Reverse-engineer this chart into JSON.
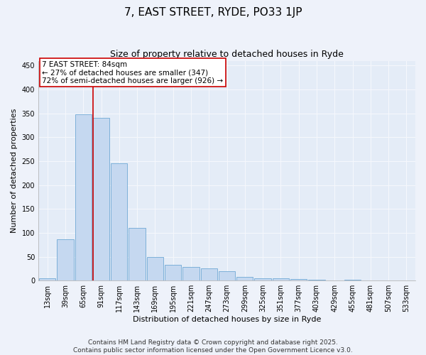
{
  "title1": "7, EAST STREET, RYDE, PO33 1JP",
  "title2": "Size of property relative to detached houses in Ryde",
  "xlabel": "Distribution of detached houses by size in Ryde",
  "ylabel": "Number of detached properties",
  "categories": [
    "13sqm",
    "39sqm",
    "65sqm",
    "91sqm",
    "117sqm",
    "143sqm",
    "169sqm",
    "195sqm",
    "221sqm",
    "247sqm",
    "273sqm",
    "299sqm",
    "325sqm",
    "351sqm",
    "377sqm",
    "403sqm",
    "429sqm",
    "455sqm",
    "481sqm",
    "507sqm",
    "533sqm"
  ],
  "values": [
    5,
    87,
    348,
    340,
    245,
    110,
    50,
    33,
    28,
    25,
    20,
    8,
    5,
    5,
    3,
    2,
    0,
    2,
    0,
    0,
    1
  ],
  "bar_color": "#c5d8f0",
  "bar_edge_color": "#6fa8d4",
  "vline_x_index": 2.55,
  "vline_color": "#cc0000",
  "annotation_text": "7 EAST STREET: 84sqm\n← 27% of detached houses are smaller (347)\n72% of semi-detached houses are larger (926) →",
  "annotation_box_color": "#ffffff",
  "annotation_box_edge": "#cc0000",
  "ylim": [
    0,
    460
  ],
  "yticks": [
    0,
    50,
    100,
    150,
    200,
    250,
    300,
    350,
    400,
    450
  ],
  "footer": "Contains HM Land Registry data © Crown copyright and database right 2025.\nContains public sector information licensed under the Open Government Licence v3.0.",
  "bg_color": "#eef2fa",
  "plot_bg_color": "#e4ecf7",
  "grid_color": "#f5f7fc",
  "title_fontsize": 11,
  "subtitle_fontsize": 9,
  "tick_fontsize": 7,
  "label_fontsize": 8,
  "footer_fontsize": 6.5
}
